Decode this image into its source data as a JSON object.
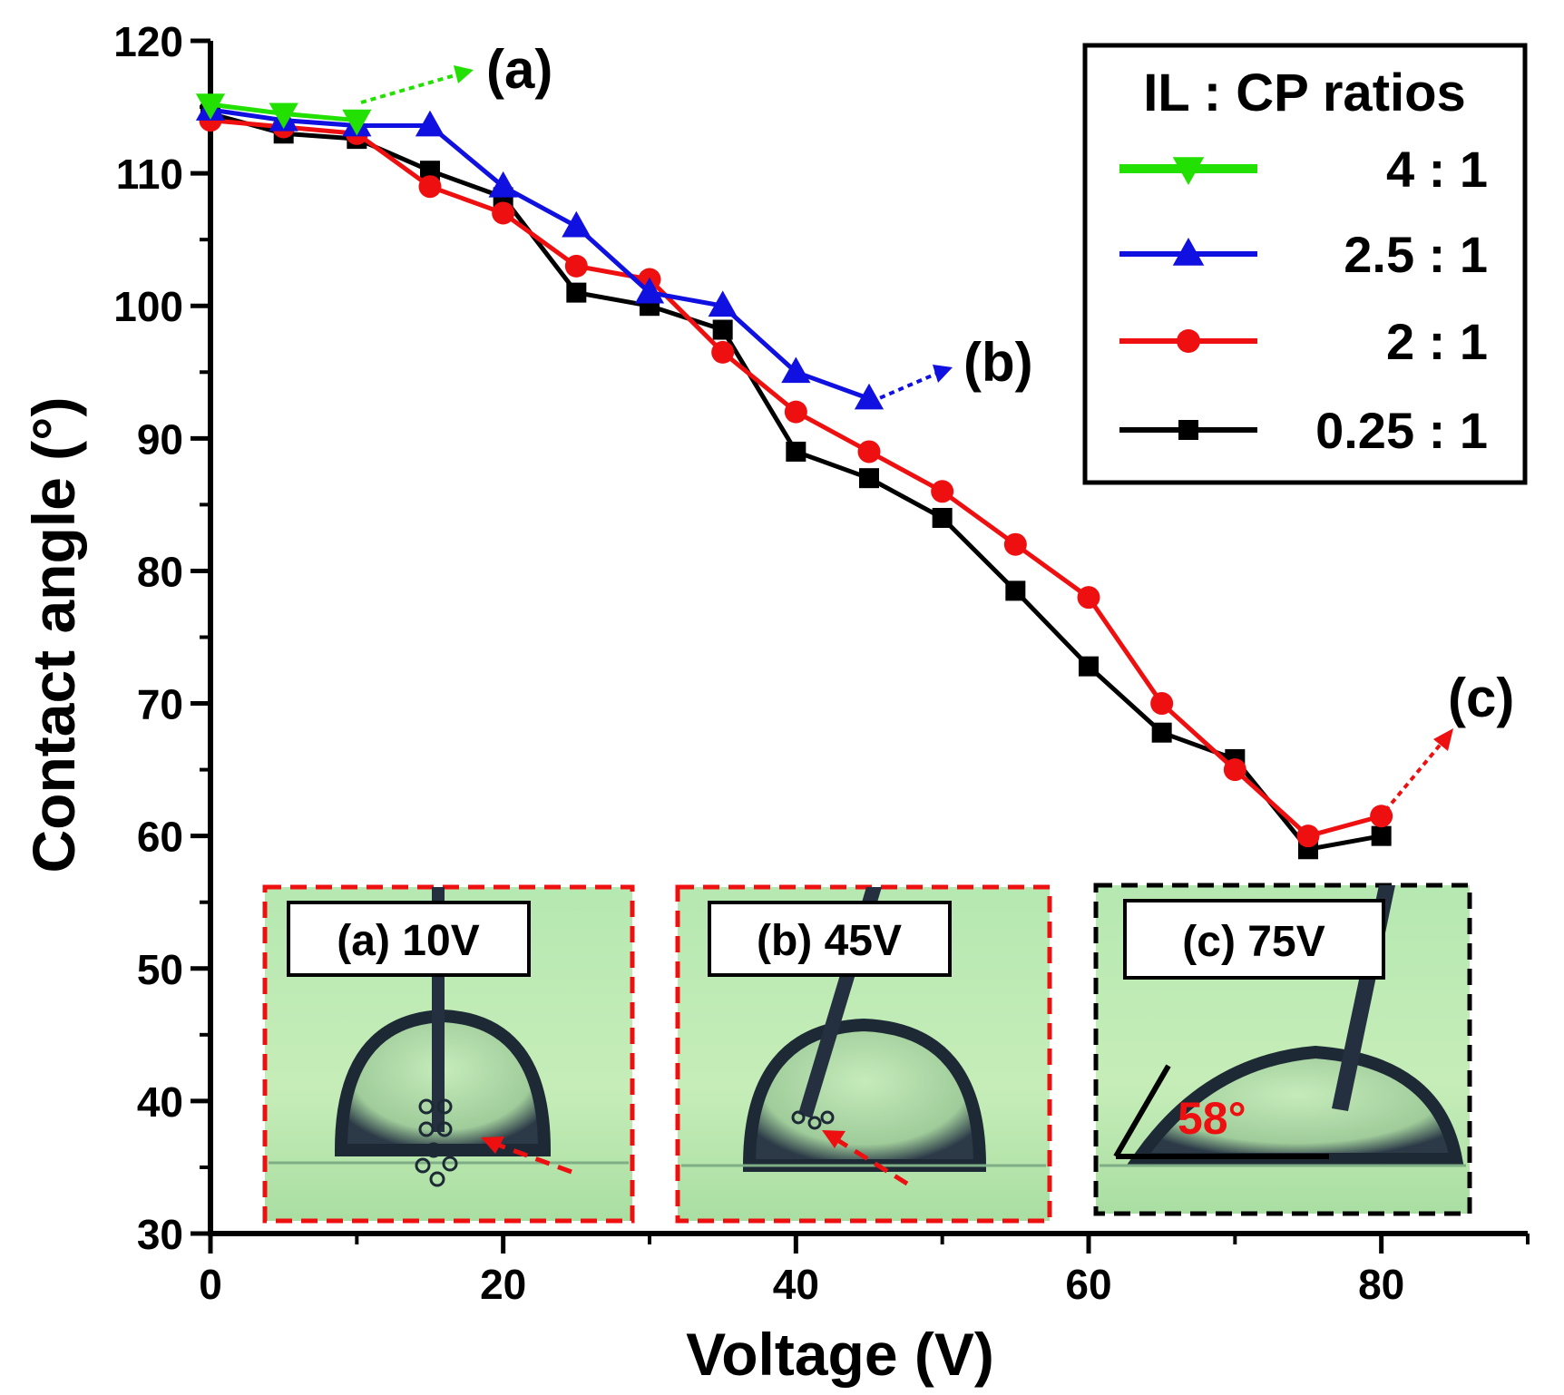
{
  "chart_data": {
    "type": "line",
    "xlabel": "Voltage (V)",
    "ylabel": "Contact angle (°)",
    "xlim": [
      0,
      90
    ],
    "ylim": [
      30,
      120
    ],
    "xticks": [
      0,
      20,
      40,
      60,
      80
    ],
    "yticks": [
      30,
      40,
      50,
      60,
      70,
      80,
      90,
      100,
      110,
      120
    ],
    "grid": false,
    "legend": {
      "title": "IL : CP ratios",
      "placement": "top-right",
      "entries": [
        "4 : 1",
        "2.5 : 1",
        "2 : 1",
        "0.25 : 1"
      ]
    },
    "series": [
      {
        "name": "4:1",
        "color": "#22e000",
        "marker": "triangle-down",
        "x": [
          0,
          5,
          10
        ],
        "y": [
          115.2,
          114.5,
          114
        ]
      },
      {
        "name": "2.5:1",
        "color": "#1010e0",
        "marker": "triangle-up",
        "x": [
          0,
          5,
          10,
          15,
          20,
          25,
          30,
          35,
          40,
          45
        ],
        "y": [
          114.8,
          114,
          113.6,
          113.6,
          109,
          106,
          101,
          100,
          95,
          93
        ]
      },
      {
        "name": "2:1",
        "color": "#ee1010",
        "marker": "circle",
        "x": [
          0,
          5,
          10,
          15,
          20,
          25,
          30,
          35,
          40,
          45,
          50,
          55,
          60,
          65,
          70,
          75,
          80
        ],
        "y": [
          114,
          113.5,
          113,
          109,
          107,
          103,
          102,
          96.5,
          92,
          89,
          86,
          82,
          78,
          70,
          65,
          60,
          61.5
        ]
      },
      {
        "name": "0.25:1",
        "color": "#000000",
        "marker": "square",
        "x": [
          0,
          5,
          10,
          15,
          20,
          25,
          30,
          35,
          40,
          45,
          50,
          55,
          60,
          65,
          70,
          75,
          80
        ],
        "y": [
          114.5,
          113,
          112.6,
          110.2,
          108.2,
          101,
          100,
          98.2,
          89,
          87,
          84,
          78.5,
          72.8,
          67.8,
          65.8,
          59,
          60
        ]
      }
    ],
    "annotations": [
      {
        "label": "(a)",
        "at_x": 10,
        "at_y": 114,
        "color": "#22e000"
      },
      {
        "label": "(b)",
        "at_x": 45,
        "at_y": 93,
        "color": "#1010e0"
      },
      {
        "label": "(c)",
        "at_x": 80,
        "at_y": 61.5,
        "color": "#ee1010"
      }
    ],
    "insets": [
      {
        "label": "(a) 10V",
        "border": "#ee1010"
      },
      {
        "label": "(b) 45V",
        "border": "#ee1010"
      },
      {
        "label": "(c) 75V",
        "border": "#000000",
        "angle_label": "58°"
      }
    ]
  }
}
